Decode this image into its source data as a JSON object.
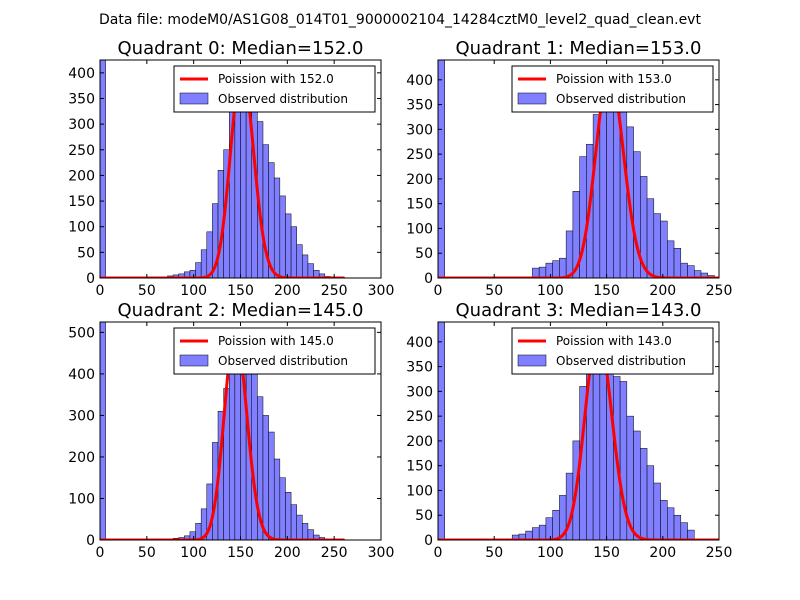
{
  "figure": {
    "suptitle": "Data file: modeM0/AS1G08_014T01_9000002104_14284cztM0_level2_quad_clean.evt"
  },
  "colors": {
    "fit": "#ff0000",
    "bar_fill": "#7f7fff",
    "bar_edge": "#000000",
    "axis": "#000000"
  },
  "chart_data": [
    {
      "type": "bar",
      "title": "Quadrant 0: Median=152.0",
      "xlim": [
        0,
        300
      ],
      "ylim": [
        0,
        425
      ],
      "xticks": [
        "0",
        "50",
        "100",
        "150",
        "200",
        "250",
        "300"
      ],
      "yticks": [
        "0",
        "50",
        "100",
        "150",
        "200",
        "250",
        "300",
        "350",
        "400"
      ],
      "legend": {
        "position": "top-right",
        "fit_label": "Poission with 152.0",
        "hist_label": "Observed distribution"
      },
      "fit_lambda": 152,
      "fit_peak": 405,
      "fit_range": [
        0,
        260
      ],
      "bin_width": 6,
      "bins": [
        [
          0,
          425
        ],
        [
          72,
          4
        ],
        [
          78,
          6
        ],
        [
          84,
          8
        ],
        [
          90,
          12
        ],
        [
          96,
          15
        ],
        [
          102,
          30
        ],
        [
          108,
          55
        ],
        [
          114,
          90
        ],
        [
          120,
          145
        ],
        [
          126,
          210
        ],
        [
          132,
          250
        ],
        [
          138,
          330
        ],
        [
          144,
          355
        ],
        [
          150,
          395
        ],
        [
          156,
          370
        ],
        [
          162,
          325
        ],
        [
          168,
          305
        ],
        [
          174,
          260
        ],
        [
          180,
          225
        ],
        [
          186,
          195
        ],
        [
          192,
          160
        ],
        [
          198,
          125
        ],
        [
          204,
          100
        ],
        [
          210,
          65
        ],
        [
          216,
          45
        ],
        [
          222,
          28
        ],
        [
          228,
          15
        ],
        [
          234,
          8
        ],
        [
          240,
          3
        ]
      ]
    },
    {
      "type": "bar",
      "title": "Quadrant 1: Median=153.0",
      "xlim": [
        0,
        250
      ],
      "ylim": [
        0,
        440
      ],
      "xticks": [
        "0",
        "50",
        "100",
        "150",
        "200",
        "250"
      ],
      "yticks": [
        "0",
        "50",
        "100",
        "150",
        "200",
        "250",
        "300",
        "350",
        "400"
      ],
      "legend": {
        "position": "top-right",
        "fit_label": "Poission with 153.0",
        "hist_label": "Observed distribution"
      },
      "fit_lambda": 153,
      "fit_peak": 415,
      "fit_range": [
        0,
        250
      ],
      "bin_width": 6,
      "bins": [
        [
          0,
          440
        ],
        [
          84,
          20
        ],
        [
          90,
          22
        ],
        [
          96,
          30
        ],
        [
          102,
          35
        ],
        [
          108,
          40
        ],
        [
          114,
          95
        ],
        [
          120,
          175
        ],
        [
          126,
          245
        ],
        [
          132,
          270
        ],
        [
          138,
          330
        ],
        [
          144,
          400
        ],
        [
          150,
          390
        ],
        [
          156,
          395
        ],
        [
          162,
          340
        ],
        [
          168,
          305
        ],
        [
          174,
          255
        ],
        [
          180,
          205
        ],
        [
          186,
          160
        ],
        [
          192,
          130
        ],
        [
          198,
          115
        ],
        [
          204,
          75
        ],
        [
          210,
          60
        ],
        [
          216,
          30
        ],
        [
          222,
          25
        ],
        [
          228,
          15
        ],
        [
          234,
          10
        ],
        [
          240,
          5
        ],
        [
          246,
          2
        ]
      ]
    },
    {
      "type": "bar",
      "title": "Quadrant 2: Median=145.0",
      "xlim": [
        0,
        300
      ],
      "ylim": [
        0,
        525
      ],
      "xticks": [
        "0",
        "50",
        "100",
        "150",
        "200",
        "250",
        "300"
      ],
      "yticks": [
        "0",
        "100",
        "200",
        "300",
        "400",
        "500"
      ],
      "legend": {
        "position": "top-right",
        "fit_label": "Poission with 145.0",
        "hist_label": "Observed distribution"
      },
      "fit_lambda": 145,
      "fit_peak": 500,
      "fit_range": [
        0,
        260
      ],
      "bin_width": 6,
      "bins": [
        [
          0,
          525
        ],
        [
          78,
          4
        ],
        [
          84,
          6
        ],
        [
          90,
          10
        ],
        [
          96,
          20
        ],
        [
          102,
          40
        ],
        [
          108,
          75
        ],
        [
          114,
          135
        ],
        [
          120,
          235
        ],
        [
          126,
          310
        ],
        [
          132,
          365
        ],
        [
          138,
          455
        ],
        [
          144,
          460
        ],
        [
          150,
          480
        ],
        [
          156,
          440
        ],
        [
          162,
          410
        ],
        [
          168,
          345
        ],
        [
          174,
          300
        ],
        [
          180,
          260
        ],
        [
          186,
          195
        ],
        [
          192,
          150
        ],
        [
          198,
          115
        ],
        [
          204,
          85
        ],
        [
          210,
          60
        ],
        [
          216,
          40
        ],
        [
          222,
          25
        ],
        [
          228,
          12
        ],
        [
          234,
          6
        ],
        [
          240,
          2
        ]
      ]
    },
    {
      "type": "bar",
      "title": "Quadrant 3: Median=143.0",
      "xlim": [
        0,
        250
      ],
      "ylim": [
        0,
        440
      ],
      "xticks": [
        "0",
        "50",
        "100",
        "150",
        "200",
        "250"
      ],
      "yticks": [
        "0",
        "50",
        "100",
        "150",
        "200",
        "250",
        "300",
        "350",
        "400"
      ],
      "legend": {
        "position": "top-right",
        "fit_label": "Poission with 143.0",
        "hist_label": "Observed distribution"
      },
      "fit_lambda": 143,
      "fit_peak": 415,
      "fit_range": [
        0,
        250
      ],
      "bin_width": 6,
      "bins": [
        [
          0,
          440
        ],
        [
          66,
          10
        ],
        [
          72,
          12
        ],
        [
          78,
          18
        ],
        [
          84,
          25
        ],
        [
          90,
          30
        ],
        [
          96,
          45
        ],
        [
          102,
          60
        ],
        [
          108,
          90
        ],
        [
          114,
          135
        ],
        [
          120,
          200
        ],
        [
          126,
          310
        ],
        [
          132,
          340
        ],
        [
          138,
          405
        ],
        [
          144,
          380
        ],
        [
          150,
          400
        ],
        [
          156,
          330
        ],
        [
          162,
          320
        ],
        [
          168,
          250
        ],
        [
          174,
          220
        ],
        [
          180,
          185
        ],
        [
          186,
          150
        ],
        [
          192,
          115
        ],
        [
          198,
          80
        ],
        [
          204,
          65
        ],
        [
          210,
          50
        ],
        [
          216,
          35
        ],
        [
          222,
          20
        ]
      ]
    }
  ]
}
